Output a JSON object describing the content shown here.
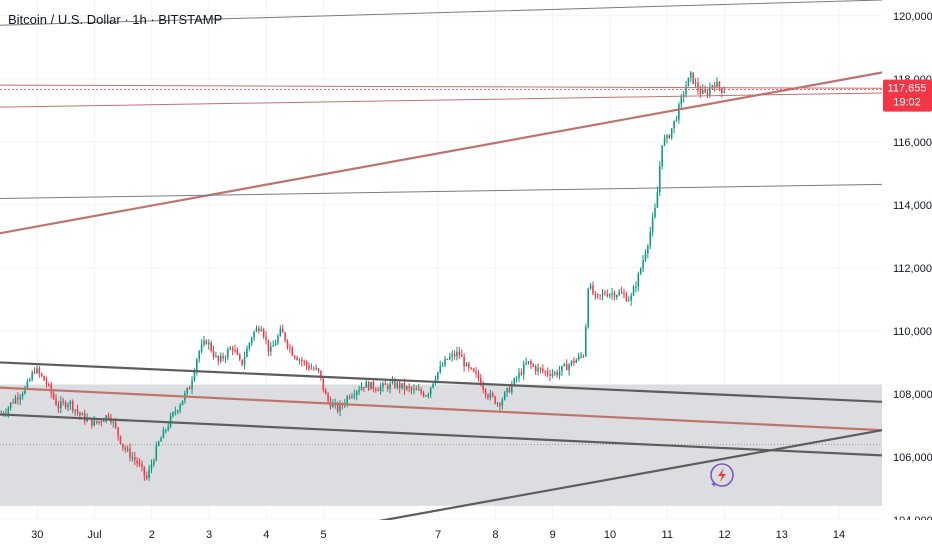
{
  "header": {
    "title": "Bitcoin / U.S. Dollar · 1h · BITSTAMP"
  },
  "price_tag": {
    "price": "117,655",
    "countdown": "19:02",
    "value": 117655,
    "color": "#f23645"
  },
  "colors": {
    "up": "#089981",
    "down": "#f23645",
    "zone": "#dcdde0",
    "trend_red": "#c0736d",
    "trend_dark": "#5d5d5d",
    "trend_thin": "#7b7b7b"
  },
  "icons": {
    "watermark": "lightning-logo-icon"
  },
  "chart_data": {
    "type": "candlestick",
    "title": "Bitcoin / U.S. Dollar · 1h · BITSTAMP",
    "ylim": [
      104000,
      120500
    ],
    "y_ticks": [
      104000,
      106000,
      108000,
      110000,
      112000,
      114000,
      116000,
      118000,
      120000
    ],
    "y_tick_labels": [
      "104,000",
      "106,000",
      "108,000",
      "110,000",
      "112,000",
      "114,000",
      "116,000",
      "118,000",
      "120,000"
    ],
    "x_unit": "days since start of June 30 (1h bars)",
    "xlim": [
      -0.65,
      14.75
    ],
    "x_ticks": [
      {
        "label": "30",
        "x": 0.0
      },
      {
        "label": "Jul",
        "x": 1.0
      },
      {
        "label": "2",
        "x": 2.0
      },
      {
        "label": "3",
        "x": 3.0
      },
      {
        "label": "4",
        "x": 4.0
      },
      {
        "label": "5",
        "x": 5.0
      },
      {
        "label": "7",
        "x": 7.0
      },
      {
        "label": "8",
        "x": 8.0
      },
      {
        "label": "9",
        "x": 9.0
      },
      {
        "label": "10",
        "x": 10.0
      },
      {
        "label": "11",
        "x": 11.0
      },
      {
        "label": "12",
        "x": 12.0
      },
      {
        "label": "13",
        "x": 13.0
      },
      {
        "label": "14",
        "x": 14.0
      }
    ],
    "zone": {
      "y_low": 104450,
      "y_high": 108300
    },
    "zone_lines": [
      106400
    ],
    "trendlines": [
      {
        "name": "upper-rising-red",
        "color": "trend_red",
        "width": 2.2,
        "points": [
          [
            -0.65,
            113100
          ],
          [
            14.75,
            118200
          ]
        ]
      },
      {
        "name": "channel-top",
        "color": "trend_dark",
        "width": 2.2,
        "points": [
          [
            -0.65,
            109000
          ],
          [
            14.75,
            107750
          ]
        ]
      },
      {
        "name": "channel-mid-red",
        "color": "trend_red",
        "width": 2.2,
        "points": [
          [
            -0.65,
            108200
          ],
          [
            14.75,
            106850
          ]
        ]
      },
      {
        "name": "channel-bottom",
        "color": "trend_dark",
        "width": 2.2,
        "points": [
          [
            -0.65,
            107350
          ],
          [
            14.75,
            106050
          ]
        ]
      },
      {
        "name": "support-rising",
        "color": "trend_dark",
        "width": 2.2,
        "points": [
          [
            5.3,
            103750
          ],
          [
            14.75,
            106850
          ]
        ]
      },
      {
        "name": "flat-thin-gray",
        "color": "trend_thin",
        "width": 1,
        "points": [
          [
            -0.65,
            114200
          ],
          [
            14.75,
            114650
          ]
        ]
      },
      {
        "name": "top-thin",
        "color": "trend_thin",
        "width": 1,
        "points": [
          [
            -0.65,
            119700
          ],
          [
            14.75,
            120500
          ]
        ]
      },
      {
        "name": "resistance-thin-red",
        "color": "trend_red",
        "width": 1,
        "points": [
          [
            -0.65,
            117800
          ],
          [
            14.75,
            117700
          ]
        ]
      },
      {
        "name": "resistance-thin-red-2",
        "color": "trend_red",
        "width": 1,
        "points": [
          [
            -0.65,
            117100
          ],
          [
            14.75,
            117550
          ]
        ]
      }
    ],
    "anchors": [
      [
        -0.65,
        107300
      ],
      [
        -0.5,
        107500
      ],
      [
        -0.35,
        107850
      ],
      [
        -0.15,
        108200
      ],
      [
        0.0,
        108800
      ],
      [
        0.2,
        108350
      ],
      [
        0.4,
        107600
      ],
      [
        0.6,
        107750
      ],
      [
        0.8,
        107300
      ],
      [
        1.05,
        107050
      ],
      [
        1.3,
        107350
      ],
      [
        1.55,
        106300
      ],
      [
        1.8,
        105800
      ],
      [
        1.95,
        105300
      ],
      [
        2.15,
        106400
      ],
      [
        2.4,
        107300
      ],
      [
        2.7,
        108200
      ],
      [
        2.85,
        109300
      ],
      [
        3.0,
        109700
      ],
      [
        3.2,
        109000
      ],
      [
        3.45,
        109500
      ],
      [
        3.6,
        108900
      ],
      [
        3.8,
        109900
      ],
      [
        3.95,
        110200
      ],
      [
        4.1,
        109300
      ],
      [
        4.3,
        110000
      ],
      [
        4.5,
        109300
      ],
      [
        4.75,
        108900
      ],
      [
        4.95,
        108700
      ],
      [
        5.1,
        107800
      ],
      [
        5.3,
        107500
      ],
      [
        5.5,
        108000
      ],
      [
        5.75,
        108300
      ],
      [
        6.0,
        108200
      ],
      [
        6.3,
        108300
      ],
      [
        6.6,
        108100
      ],
      [
        6.85,
        108000
      ],
      [
        7.0,
        108600
      ],
      [
        7.2,
        109100
      ],
      [
        7.4,
        109300
      ],
      [
        7.55,
        108800
      ],
      [
        7.75,
        108500
      ],
      [
        7.9,
        108000
      ],
      [
        8.1,
        107700
      ],
      [
        8.3,
        108200
      ],
      [
        8.45,
        108600
      ],
      [
        8.6,
        109000
      ],
      [
        8.75,
        108800
      ],
      [
        8.9,
        108700
      ],
      [
        9.1,
        108650
      ],
      [
        9.3,
        108900
      ],
      [
        9.5,
        109150
      ],
      [
        9.6,
        109300
      ],
      [
        9.65,
        111500
      ],
      [
        9.8,
        111000
      ],
      [
        9.95,
        111200
      ],
      [
        10.2,
        111200
      ],
      [
        10.4,
        111000
      ],
      [
        10.55,
        111800
      ],
      [
        10.7,
        112800
      ],
      [
        10.85,
        114000
      ],
      [
        10.95,
        116000
      ],
      [
        11.05,
        116100
      ],
      [
        11.2,
        116800
      ],
      [
        11.35,
        117700
      ],
      [
        11.45,
        118100
      ],
      [
        11.6,
        117600
      ],
      [
        11.72,
        117500
      ],
      [
        11.85,
        117900
      ],
      [
        12.0,
        117650
      ]
    ]
  }
}
